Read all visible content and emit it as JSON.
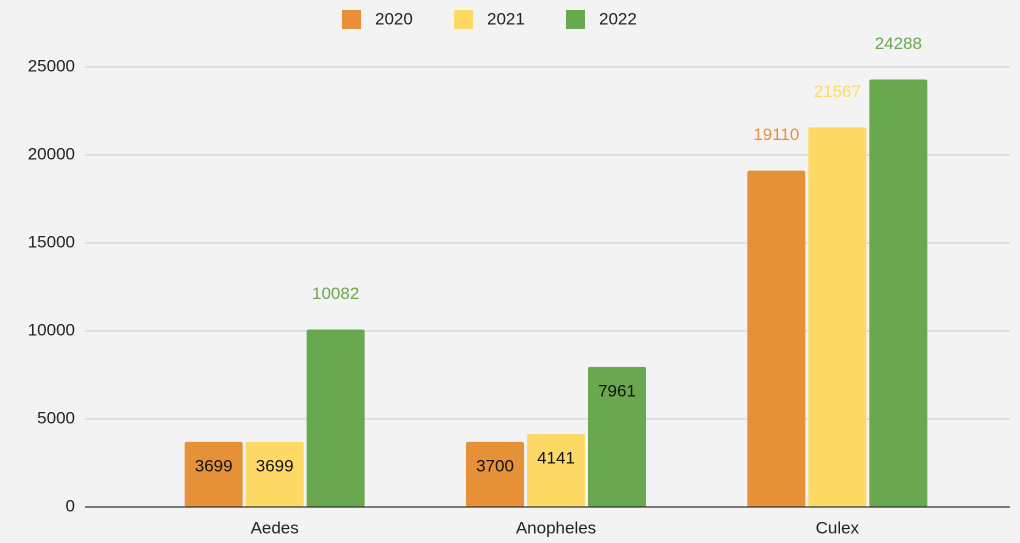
{
  "chart_data": {
    "type": "bar",
    "categories": [
      "Aedes",
      "Anopheles",
      "Culex"
    ],
    "series": [
      {
        "name": "2020",
        "color": "#e69138",
        "values": [
          3699,
          3700,
          19110
        ]
      },
      {
        "name": "2021",
        "color": "#ffd966",
        "values": [
          3699,
          4141,
          21567
        ]
      },
      {
        "name": "2022",
        "color": "#6aa84f",
        "values": [
          10082,
          7961,
          24288
        ]
      }
    ],
    "ylim": [
      0,
      25000
    ],
    "yticks": [
      0,
      5000,
      10000,
      15000,
      20000,
      25000
    ],
    "grid": true,
    "legend": "top"
  }
}
